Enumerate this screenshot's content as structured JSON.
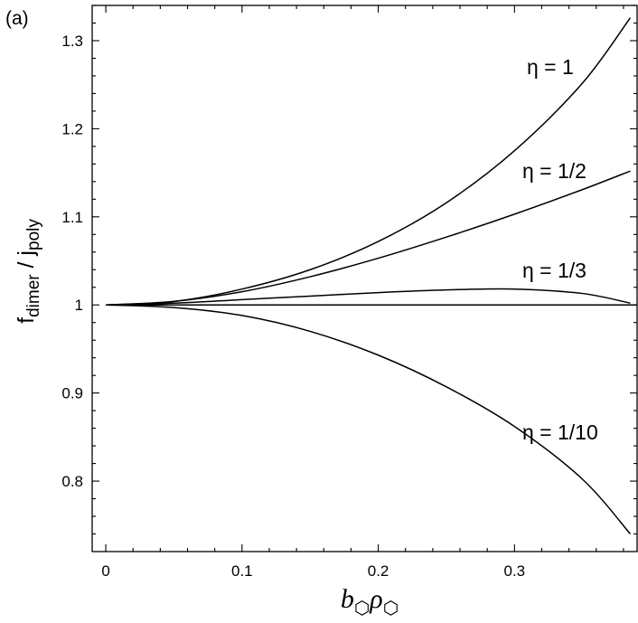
{
  "chart_data": {
    "type": "line",
    "panel_label": "(a)",
    "title": "",
    "xlabel": {
      "base": "b",
      "sub_b": "⬡",
      "rho": "ρ",
      "sub_rho": "⬡"
    },
    "ylabel": {
      "f": "f",
      "f_sub": "dimer",
      "slash": " / ",
      "j": "j",
      "j_sub": "poly"
    },
    "xlim": [
      -0.01,
      0.39
    ],
    "ylim": [
      0.72,
      1.34
    ],
    "x_ticks": [
      0,
      0.1,
      0.2,
      0.3
    ],
    "x_tick_labels": [
      "0",
      "0.1",
      "0.2",
      "0.3"
    ],
    "y_ticks": [
      0.8,
      0.9,
      1.0,
      1.1,
      1.2,
      1.3
    ],
    "y_tick_labels": [
      "0.8",
      "0.9",
      "1",
      "1.1",
      "1.2",
      "1.3"
    ],
    "reference_line": {
      "y": 1.0
    },
    "series": [
      {
        "name": "η = 1",
        "label": "η = 1",
        "x": [
          0,
          0.05,
          0.1,
          0.15,
          0.2,
          0.25,
          0.3,
          0.35,
          0.385
        ],
        "y": [
          1.0,
          1.004,
          1.018,
          1.04,
          1.072,
          1.116,
          1.175,
          1.252,
          1.326
        ]
      },
      {
        "name": "η = 1/2",
        "label": "η = 1/2",
        "x": [
          0,
          0.05,
          0.1,
          0.15,
          0.2,
          0.25,
          0.3,
          0.35,
          0.385
        ],
        "y": [
          1.0,
          1.004,
          1.015,
          1.032,
          1.053,
          1.077,
          1.103,
          1.131,
          1.152
        ]
      },
      {
        "name": "η = 1/3",
        "label": "η = 1/3",
        "x": [
          0,
          0.05,
          0.1,
          0.15,
          0.2,
          0.25,
          0.3,
          0.35,
          0.385
        ],
        "y": [
          1.0,
          1.002,
          1.006,
          1.01,
          1.014,
          1.017,
          1.018,
          1.013,
          1.002
        ]
      },
      {
        "name": "η = 1/10",
        "label": "η = 1/10",
        "x": [
          0,
          0.05,
          0.1,
          0.15,
          0.2,
          0.25,
          0.3,
          0.35,
          0.385
        ],
        "y": [
          1.0,
          0.997,
          0.988,
          0.97,
          0.943,
          0.907,
          0.862,
          0.802,
          0.74
        ]
      }
    ]
  }
}
